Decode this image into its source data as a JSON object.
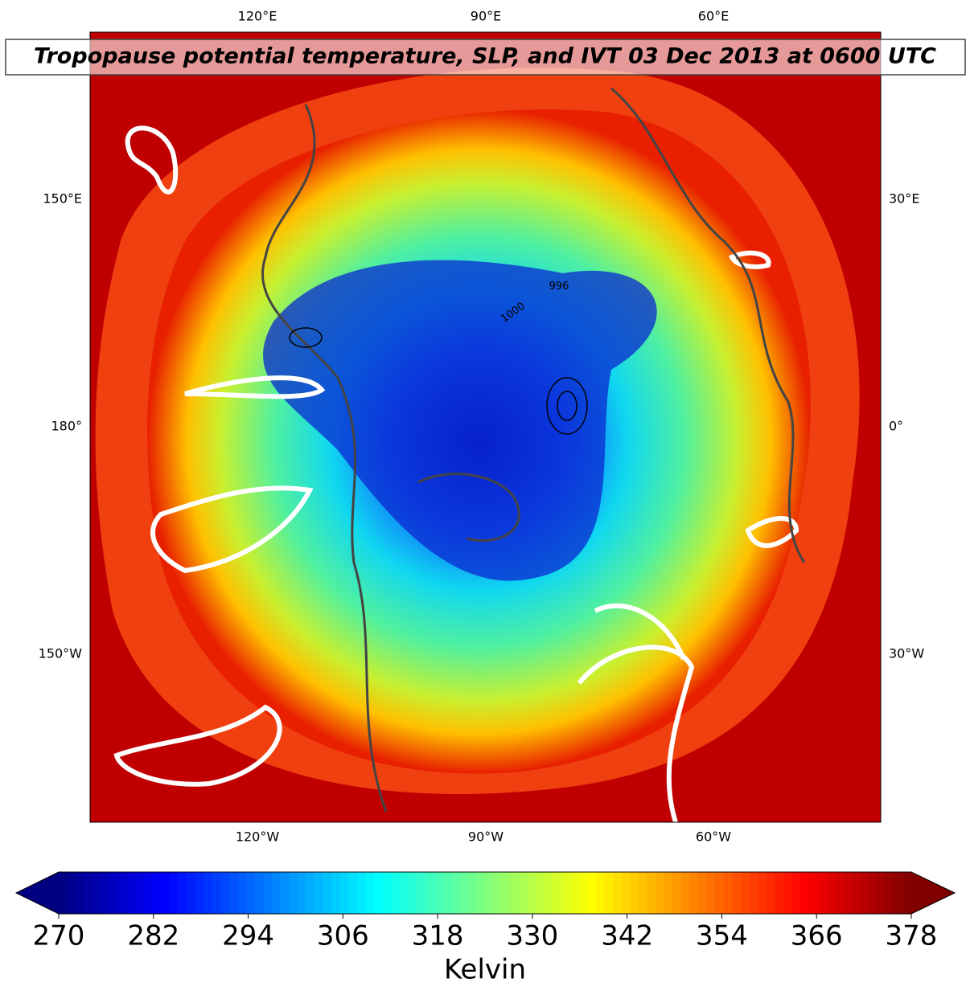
{
  "title": "Tropopause potential temperature, SLP, and IVT 03 Dec 2013 at 0600 UTC",
  "map": {
    "top_labels": [
      "120°E",
      "90°E",
      "60°E"
    ],
    "bottom_labels": [
      "120°W",
      "90°W",
      "60°W"
    ],
    "left_labels": [
      "150°E",
      "180°",
      "150°W"
    ],
    "right_labels": [
      "30°E",
      "0°",
      "30°W"
    ],
    "contour_labels": [
      "996",
      "1000"
    ]
  },
  "colorbar": {
    "label": "Kelvin",
    "colormap": "jet",
    "lim": [
      270,
      378
    ],
    "ticks": [
      270,
      282,
      294,
      306,
      318,
      330,
      342,
      354,
      366,
      378
    ]
  }
}
